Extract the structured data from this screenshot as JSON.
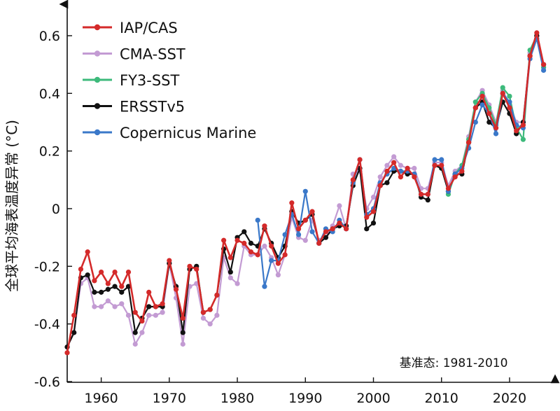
{
  "chart_data": {
    "type": "line",
    "ylabel": "全球平均海表温度异常 (°C)",
    "xlabel": "",
    "xlim": [
      1955,
      2027
    ],
    "ylim": [
      -0.6,
      0.65
    ],
    "x_ticks": [
      1960,
      1970,
      1980,
      1990,
      2000,
      2010,
      2020
    ],
    "y_ticks": [
      -0.6,
      -0.4,
      -0.2,
      0,
      0.2,
      0.4,
      0.6
    ],
    "y_tick_labels": [
      "-0.6",
      "-0.4",
      "-0.2",
      "0",
      "0.2",
      "0.4",
      "0.6"
    ],
    "legend_position": "top-left",
    "annotation": "基准态: 1981-2010",
    "grid": false,
    "series": [
      {
        "name": "IAP/CAS",
        "color": "#d42a2a",
        "x": [
          1955,
          1956,
          1957,
          1958,
          1959,
          1960,
          1961,
          1962,
          1963,
          1964,
          1965,
          1966,
          1967,
          1968,
          1969,
          1970,
          1971,
          1972,
          1973,
          1974,
          1975,
          1976,
          1977,
          1978,
          1979,
          1980,
          1981,
          1982,
          1983,
          1984,
          1985,
          1986,
          1987,
          1988,
          1989,
          1990,
          1991,
          1992,
          1993,
          1994,
          1995,
          1996,
          1997,
          1998,
          1999,
          2000,
          2001,
          2002,
          2003,
          2004,
          2005,
          2006,
          2007,
          2008,
          2009,
          2010,
          2011,
          2012,
          2013,
          2014,
          2015,
          2016,
          2017,
          2018,
          2019,
          2020,
          2021,
          2022,
          2023,
          2024,
          2025
        ],
        "y": [
          -0.5,
          -0.37,
          -0.21,
          -0.15,
          -0.25,
          -0.22,
          -0.26,
          -0.22,
          -0.27,
          -0.22,
          -0.36,
          -0.39,
          -0.29,
          -0.34,
          -0.33,
          -0.18,
          -0.28,
          -0.38,
          -0.2,
          -0.21,
          -0.36,
          -0.35,
          -0.3,
          -0.11,
          -0.17,
          -0.11,
          -0.12,
          -0.15,
          -0.16,
          -0.06,
          -0.13,
          -0.19,
          -0.16,
          0.02,
          -0.07,
          -0.04,
          -0.01,
          -0.12,
          -0.08,
          -0.07,
          -0.05,
          -0.07,
          0.1,
          0.17,
          -0.03,
          -0.01,
          0.08,
          0.13,
          0.16,
          0.11,
          0.14,
          0.11,
          0.05,
          0.05,
          0.15,
          0.15,
          0.07,
          0.11,
          0.13,
          0.23,
          0.35,
          0.39,
          0.33,
          0.28,
          0.4,
          0.35,
          0.27,
          0.29,
          0.53,
          0.61,
          0.5
        ]
      },
      {
        "name": "CMA-SST",
        "color": "#c39bd3",
        "x": [
          1955,
          1956,
          1957,
          1958,
          1959,
          1960,
          1961,
          1962,
          1963,
          1964,
          1965,
          1966,
          1967,
          1968,
          1969,
          1970,
          1971,
          1972,
          1973,
          1974,
          1975,
          1976,
          1977,
          1978,
          1979,
          1980,
          1981,
          1982,
          1983,
          1984,
          1985,
          1986,
          1987,
          1988,
          1989,
          1990,
          1991,
          1992,
          1993,
          1994,
          1995,
          1996,
          1997,
          1998,
          1999,
          2000,
          2001,
          2002,
          2003,
          2004,
          2005,
          2006,
          2007,
          2008,
          2009,
          2010,
          2011,
          2012,
          2013,
          2014,
          2015,
          2016,
          2017,
          2018,
          2019,
          2020,
          2021,
          2022,
          2023,
          2024,
          2025
        ],
        "y": [
          -0.48,
          -0.43,
          -0.26,
          -0.24,
          -0.34,
          -0.34,
          -0.32,
          -0.34,
          -0.33,
          -0.37,
          -0.47,
          -0.43,
          -0.37,
          -0.37,
          -0.36,
          -0.19,
          -0.31,
          -0.47,
          -0.27,
          -0.26,
          -0.38,
          -0.4,
          -0.37,
          -0.17,
          -0.24,
          -0.26,
          -0.13,
          -0.16,
          -0.16,
          -0.13,
          -0.17,
          -0.23,
          -0.16,
          -0.03,
          -0.1,
          -0.11,
          -0.04,
          -0.11,
          -0.1,
          -0.06,
          0.01,
          -0.07,
          0.12,
          0.13,
          0.0,
          0.04,
          0.11,
          0.15,
          0.18,
          0.15,
          0.14,
          0.14,
          0.07,
          0.07,
          0.16,
          0.16,
          0.08,
          0.13,
          0.15,
          0.25,
          0.37,
          0.41,
          0.36,
          0.3,
          0.41,
          0.36,
          0.3,
          0.3,
          0.54,
          0.6,
          0.49
        ]
      },
      {
        "name": "FY3-SST",
        "color": "#3dba7b",
        "x": [
          2011,
          2012,
          2013,
          2014,
          2015,
          2016,
          2017,
          2018,
          2019,
          2020,
          2021,
          2022,
          2023,
          2024,
          2025
        ],
        "y": [
          0.05,
          0.12,
          0.15,
          0.24,
          0.37,
          0.4,
          0.35,
          0.29,
          0.42,
          0.39,
          0.28,
          0.24,
          0.55,
          0.6,
          0.49
        ]
      },
      {
        "name": "ERSSTv5",
        "color": "#111111",
        "x": [
          1955,
          1956,
          1957,
          1958,
          1959,
          1960,
          1961,
          1962,
          1963,
          1964,
          1965,
          1966,
          1967,
          1968,
          1969,
          1970,
          1971,
          1972,
          1973,
          1974,
          1975,
          1976,
          1977,
          1978,
          1979,
          1980,
          1981,
          1982,
          1983,
          1984,
          1985,
          1986,
          1987,
          1988,
          1989,
          1990,
          1991,
          1992,
          1993,
          1994,
          1995,
          1996,
          1997,
          1998,
          1999,
          2000,
          2001,
          2002,
          2003,
          2004,
          2005,
          2006,
          2007,
          2008,
          2009,
          2010,
          2011,
          2012,
          2013,
          2014,
          2015,
          2016,
          2017,
          2018,
          2019,
          2020,
          2021,
          2022,
          2023,
          2024,
          2025
        ],
        "y": [
          -0.48,
          -0.43,
          -0.24,
          -0.23,
          -0.29,
          -0.29,
          -0.28,
          -0.27,
          -0.29,
          -0.27,
          -0.43,
          -0.38,
          -0.34,
          -0.34,
          -0.34,
          -0.19,
          -0.27,
          -0.43,
          -0.21,
          -0.2,
          -0.36,
          -0.35,
          -0.3,
          -0.14,
          -0.22,
          -0.1,
          -0.08,
          -0.12,
          -0.13,
          -0.07,
          -0.12,
          -0.17,
          -0.13,
          -0.01,
          -0.05,
          -0.04,
          -0.02,
          -0.12,
          -0.1,
          -0.07,
          -0.06,
          -0.06,
          0.08,
          0.14,
          -0.07,
          -0.05,
          0.08,
          0.09,
          0.13,
          0.13,
          0.12,
          0.12,
          0.04,
          0.03,
          0.15,
          0.14,
          0.06,
          0.12,
          0.12,
          0.23,
          0.35,
          0.37,
          0.3,
          0.28,
          0.37,
          0.33,
          0.26,
          0.3,
          0.53,
          0.6,
          0.5
        ]
      },
      {
        "name": "Copernicus Marine",
        "color": "#3a78c9",
        "x": [
          1983,
          1984,
          1985,
          1986,
          1987,
          1988,
          1989,
          1990,
          1991,
          1992,
          1993,
          1994,
          1995,
          1996,
          1997,
          1998,
          1999,
          2000,
          2001,
          2002,
          2003,
          2004,
          2005,
          2006,
          2007,
          2008,
          2009,
          2010,
          2011,
          2012,
          2013,
          2014,
          2015,
          2016,
          2017,
          2018,
          2019,
          2020,
          2021,
          2022,
          2023,
          2024,
          2025
        ],
        "y": [
          -0.04,
          -0.27,
          -0.18,
          -0.18,
          -0.09,
          -0.02,
          -0.09,
          0.06,
          -0.08,
          -0.12,
          -0.07,
          -0.08,
          -0.04,
          -0.07,
          0.09,
          0.17,
          -0.02,
          0.0,
          0.09,
          0.12,
          0.14,
          0.13,
          0.13,
          0.12,
          0.05,
          0.05,
          0.17,
          0.17,
          0.06,
          0.12,
          0.14,
          0.21,
          0.3,
          0.36,
          0.33,
          0.26,
          0.4,
          0.37,
          0.29,
          0.28,
          0.52,
          0.59,
          0.48
        ]
      }
    ]
  }
}
